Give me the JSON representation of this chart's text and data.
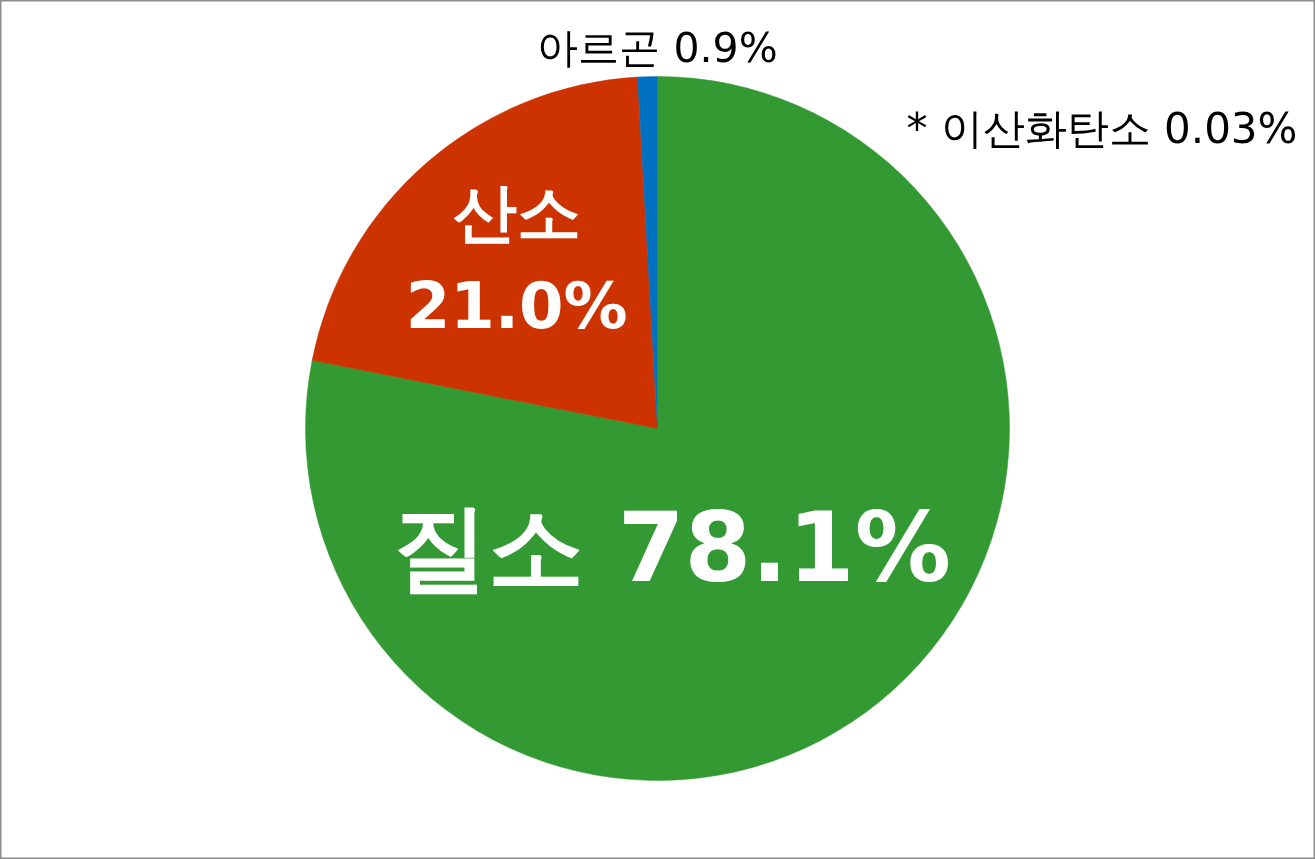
{
  "chart_data": {
    "type": "pie",
    "categories": [
      "질소",
      "산소",
      "아르곤"
    ],
    "values": [
      78.1,
      21.0,
      0.9
    ],
    "value_labels": [
      "78.1%",
      "21.0%",
      "0.9%"
    ],
    "colors": [
      "#339933",
      "#cc3300",
      "#0070c0"
    ],
    "annotations": [
      "* 이산화탄소 0.03%"
    ]
  }
}
